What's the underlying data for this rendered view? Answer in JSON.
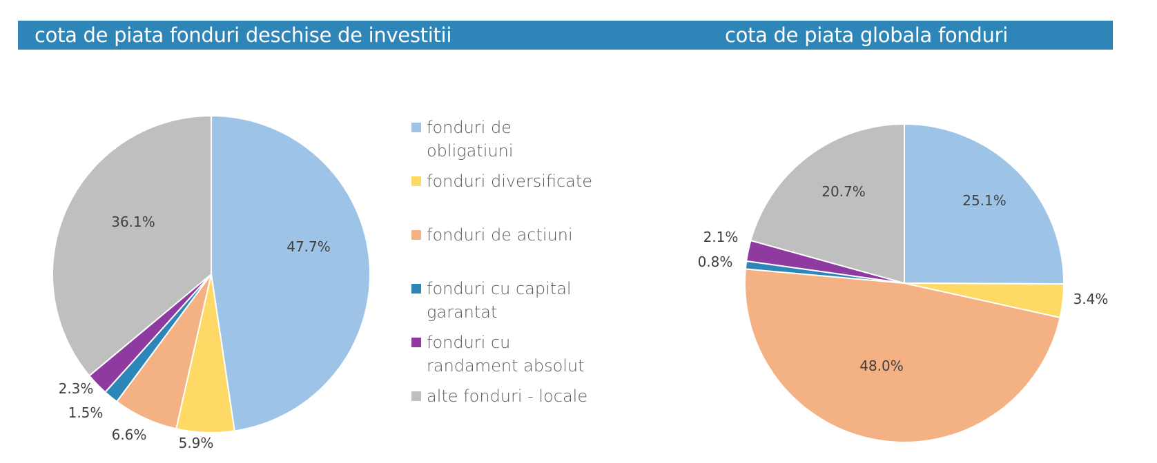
{
  "headers": {
    "left": "cota de piata fonduri deschise de investitii",
    "right": "cota de piata globala fonduri"
  },
  "legend": [
    {
      "label": "fonduri de obligatiuni",
      "color": "#9dc3e6"
    },
    {
      "label": "fonduri diversificate",
      "color": "#ffd966"
    },
    {
      "label": "fonduri de actiuni",
      "color": "#f4b183"
    },
    {
      "label": "fonduri cu capital garantat",
      "color": "#2e86b8"
    },
    {
      "label": "fonduri cu randament absolut",
      "color": "#8e3aa1"
    },
    {
      "label": "alte fonduri - locale",
      "color": "#bfbfbf"
    }
  ],
  "chart_data": [
    {
      "type": "pie",
      "title": "cota de piata fonduri deschise de investitii",
      "categories": [
        "fonduri de obligatiuni",
        "fonduri diversificate",
        "fonduri de actiuni",
        "fonduri cu capital garantat",
        "fonduri cu randament absolut",
        "alte fonduri - locale"
      ],
      "values": [
        47.7,
        5.9,
        6.6,
        1.5,
        2.3,
        36.1
      ],
      "labels": [
        "47.7%",
        "5.9%",
        "6.6%",
        "1.5%",
        "2.3%",
        "36.1%"
      ],
      "colors": [
        "#9dc3e6",
        "#ffd966",
        "#f4b183",
        "#2e86b8",
        "#8e3aa1",
        "#bfbfbf"
      ],
      "legend_position": "right"
    },
    {
      "type": "pie",
      "title": "cota de piata globala fonduri",
      "categories": [
        "fonduri de obligatiuni",
        "fonduri diversificate",
        "fonduri de actiuni",
        "fonduri cu capital garantat",
        "fonduri cu randament absolut",
        "alte fonduri - locale"
      ],
      "values": [
        25.1,
        3.4,
        48.0,
        0.8,
        2.1,
        20.7
      ],
      "labels": [
        "25.1%",
        "3.4%",
        "48.0%",
        "0.8%",
        "2.1%",
        "20.7%"
      ],
      "colors": [
        "#9dc3e6",
        "#ffd966",
        "#f4b183",
        "#2e86b8",
        "#8e3aa1",
        "#bfbfbf"
      ]
    }
  ]
}
